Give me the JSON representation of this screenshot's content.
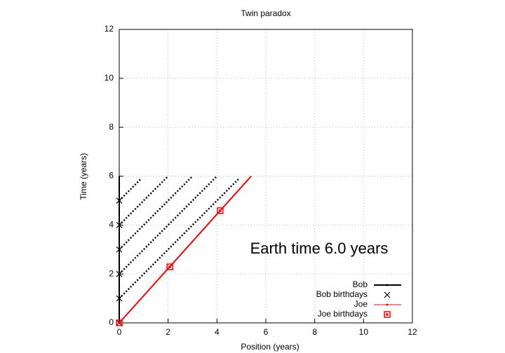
{
  "chart_data": {
    "type": "scatter",
    "title": "Twin paradox",
    "x_label": "Position (years)",
    "y_label": "Time (years)",
    "annotation": "Earth time  6.0 years",
    "xlim": [
      0,
      12
    ],
    "ylim": [
      0,
      12
    ],
    "xticks": [
      0,
      2,
      4,
      6,
      8,
      10,
      12
    ],
    "yticks": [
      0,
      2,
      4,
      6,
      8,
      10,
      12
    ],
    "grid": true,
    "legend": "lower right",
    "series": [
      {
        "name": "Bob",
        "color": "#000000",
        "style": "line",
        "x": [
          0,
          0
        ],
        "values": [
          0,
          6
        ]
      },
      {
        "name": "Bob birthdays",
        "color": "#000000",
        "style": "cross",
        "x": [
          0,
          0,
          0,
          0,
          0,
          0
        ],
        "values": [
          0,
          1,
          2,
          3,
          4,
          5
        ]
      },
      {
        "name": "Joe",
        "color": "#ff0000",
        "style": "line",
        "x": [
          0,
          5.4
        ],
        "values": [
          0,
          6
        ]
      },
      {
        "name": "Joe birthdays",
        "color": "#ff0000",
        "style": "square",
        "x": [
          0,
          2.07,
          4.13
        ],
        "values": [
          0,
          2.29,
          4.59
        ]
      }
    ],
    "signals": [
      {
        "x": [
          0,
          0.9
        ],
        "values": [
          5,
          5.9
        ]
      },
      {
        "x": [
          0,
          2
        ],
        "values": [
          4,
          6
        ]
      },
      {
        "x": [
          0,
          3
        ],
        "values": [
          3,
          6
        ]
      },
      {
        "x": [
          0,
          4
        ],
        "values": [
          2,
          6
        ]
      },
      {
        "x": [
          0,
          4.9
        ],
        "values": [
          1,
          5.9
        ]
      }
    ]
  }
}
